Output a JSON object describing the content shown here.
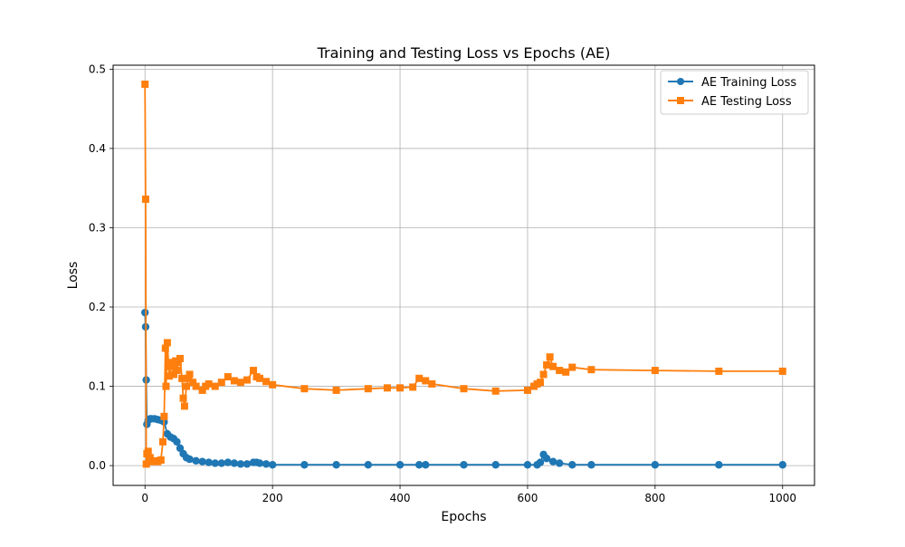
{
  "chart_data": {
    "type": "line",
    "title": "Training and Testing Loss vs Epochs (AE)",
    "xlabel": "Epochs",
    "ylabel": "Loss",
    "xlim": [
      -50,
      1050
    ],
    "ylim": [
      -0.025,
      0.505
    ],
    "xticks": [
      0,
      200,
      400,
      600,
      800,
      1000
    ],
    "xtick_labels": [
      "0",
      "200",
      "400",
      "600",
      "800",
      "1000"
    ],
    "yticks": [
      0.0,
      0.1,
      0.2,
      0.3,
      0.4,
      0.5
    ],
    "ytick_labels": [
      "0.0",
      "0.1",
      "0.2",
      "0.3",
      "0.4",
      "0.5"
    ],
    "grid": true,
    "legend": "top-right",
    "series": [
      {
        "name": "AE Training Loss",
        "color": "#1f77b4",
        "marker": "circle",
        "x": [
          0,
          1,
          2,
          3,
          5,
          8,
          10,
          15,
          20,
          25,
          30,
          35,
          40,
          45,
          50,
          55,
          60,
          65,
          70,
          80,
          90,
          100,
          110,
          120,
          130,
          140,
          150,
          160,
          170,
          175,
          180,
          190,
          200,
          250,
          300,
          350,
          400,
          430,
          440,
          500,
          550,
          600,
          615,
          620,
          625,
          630,
          640,
          650,
          670,
          700,
          800,
          900,
          1000
        ],
        "y": [
          0.193,
          0.175,
          0.108,
          0.052,
          0.057,
          0.059,
          0.059,
          0.059,
          0.058,
          0.057,
          0.055,
          0.04,
          0.036,
          0.034,
          0.03,
          0.022,
          0.015,
          0.01,
          0.008,
          0.006,
          0.005,
          0.004,
          0.003,
          0.003,
          0.004,
          0.003,
          0.002,
          0.002,
          0.004,
          0.004,
          0.003,
          0.002,
          0.001,
          0.001,
          0.001,
          0.001,
          0.001,
          0.001,
          0.001,
          0.001,
          0.001,
          0.001,
          0.001,
          0.004,
          0.014,
          0.009,
          0.005,
          0.003,
          0.001,
          0.001,
          0.001,
          0.001,
          0.001
        ]
      },
      {
        "name": "AE Testing Loss",
        "color": "#ff7f0e",
        "marker": "square",
        "x": [
          0,
          1,
          2,
          3,
          5,
          8,
          10,
          15,
          20,
          25,
          28,
          30,
          32,
          33,
          35,
          38,
          40,
          42,
          45,
          48,
          50,
          52,
          55,
          58,
          60,
          62,
          65,
          68,
          70,
          75,
          80,
          90,
          95,
          100,
          110,
          120,
          130,
          140,
          150,
          160,
          170,
          175,
          180,
          190,
          200,
          250,
          300,
          350,
          380,
          400,
          420,
          430,
          440,
          450,
          500,
          550,
          600,
          610,
          615,
          620,
          625,
          630,
          635,
          640,
          650,
          660,
          670,
          700,
          800,
          900,
          1000
        ],
        "y": [
          0.481,
          0.336,
          0.002,
          0.015,
          0.018,
          0.01,
          0.005,
          0.006,
          0.005,
          0.007,
          0.03,
          0.062,
          0.148,
          0.1,
          0.155,
          0.113,
          0.125,
          0.13,
          0.115,
          0.132,
          0.12,
          0.13,
          0.135,
          0.11,
          0.085,
          0.075,
          0.1,
          0.11,
          0.115,
          0.105,
          0.1,
          0.095,
          0.1,
          0.103,
          0.1,
          0.105,
          0.112,
          0.107,
          0.105,
          0.108,
          0.12,
          0.112,
          0.11,
          0.106,
          0.102,
          0.097,
          0.095,
          0.097,
          0.098,
          0.098,
          0.099,
          0.11,
          0.107,
          0.103,
          0.097,
          0.094,
          0.095,
          0.1,
          0.103,
          0.105,
          0.115,
          0.127,
          0.137,
          0.125,
          0.12,
          0.118,
          0.124,
          0.121,
          0.12,
          0.119,
          0.119
        ]
      }
    ]
  }
}
